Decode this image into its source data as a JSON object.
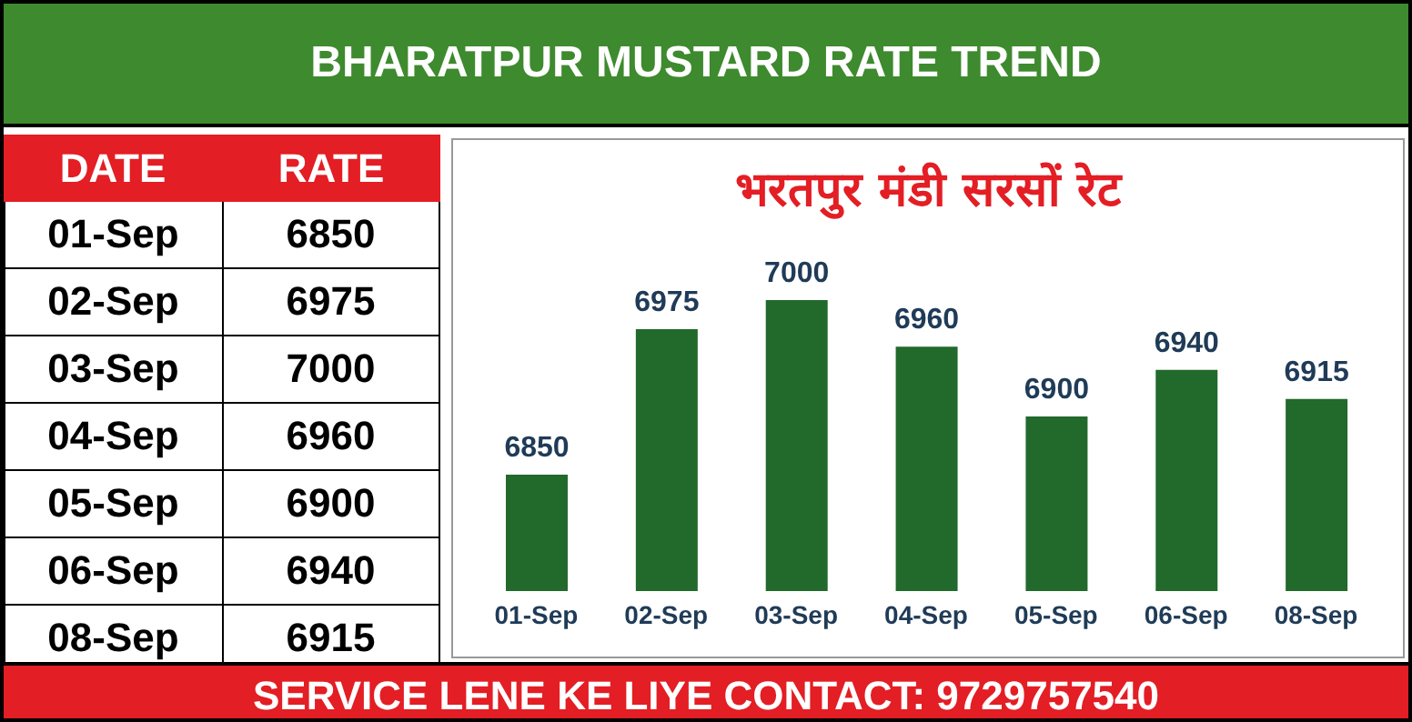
{
  "chart_data": [
    {
      "type": "other",
      "title": "BHARATPUR MUSTARD RATE TREND",
      "categories": [
        "01-Sep",
        "02-Sep",
        "03-Sep",
        "04-Sep",
        "05-Sep",
        "06-Sep",
        "08-Sep"
      ],
      "values": [
        6850,
        6975,
        7000,
        6960,
        6900,
        6940,
        6915
      ],
      "data_labels": true,
      "annotations": [
        "DATE",
        "RATE",
        "SERVICE LENE KE LIYE CONTACT: 9729757540"
      ]
    },
    {
      "type": "bar",
      "title": "भरतपुर मंडी सरसों रेट",
      "categories": [
        "01-Sep",
        "02-Sep",
        "03-Sep",
        "04-Sep",
        "05-Sep",
        "06-Sep",
        "08-Sep"
      ],
      "values": [
        6850,
        6975,
        7000,
        6960,
        6900,
        6940,
        6915
      ],
      "color": "#22692c",
      "ylim": [
        6750,
        7000
      ],
      "data_labels": true,
      "tick_labels": "x"
    }
  ]
}
